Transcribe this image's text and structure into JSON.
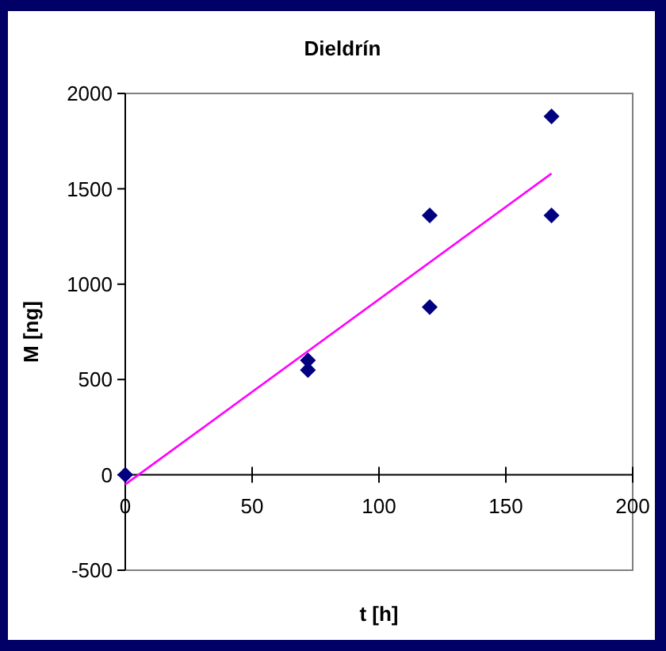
{
  "chart_data": {
    "type": "scatter",
    "title": "Dieldrín",
    "xlabel": "t [h]",
    "ylabel": "M [ng]",
    "xlim": [
      0,
      200
    ],
    "xticks": [
      0,
      50,
      100,
      150,
      200
    ],
    "ylim": [
      -500,
      2000
    ],
    "yticks": [
      -500,
      0,
      500,
      1000,
      1500,
      2000
    ],
    "grid": false,
    "series": [
      {
        "color": "#000080",
        "marker": "diamond",
        "x": [
          0,
          72,
          72,
          120,
          120,
          168,
          168
        ],
        "values": [
          0,
          600,
          550,
          1360,
          880,
          1880,
          1360
        ]
      },
      {
        "type": "line",
        "color": "#ff00ff",
        "marker": "none",
        "line_style": "solid",
        "x": [
          0,
          168
        ],
        "values": [
          -50,
          1580
        ]
      }
    ]
  }
}
